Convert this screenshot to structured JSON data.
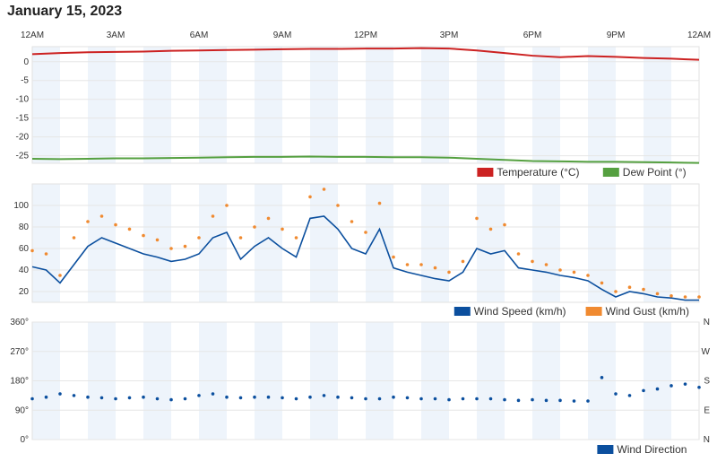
{
  "page": {
    "title": "January 15, 2023"
  },
  "time_axis": {
    "labels": [
      "12AM",
      "3AM",
      "6AM",
      "9AM",
      "12PM",
      "3PM",
      "6PM",
      "9PM",
      "12AM"
    ],
    "range_hours": [
      0,
      24
    ]
  },
  "chart_data": [
    {
      "type": "line",
      "ylim": [
        -27,
        4
      ],
      "yticks": [
        0,
        -5,
        -10,
        -15,
        -20,
        -25
      ],
      "legend_position": "bottom-right",
      "series": [
        {
          "name": "Temperature (°C)",
          "color": "#cc2222",
          "x": [
            0,
            1,
            2,
            3,
            4,
            5,
            6,
            7,
            8,
            9,
            10,
            11,
            12,
            13,
            14,
            15,
            16,
            17,
            18,
            19,
            20,
            21,
            22,
            23,
            24
          ],
          "values": [
            2.0,
            2.3,
            2.5,
            2.6,
            2.7,
            2.9,
            3.0,
            3.1,
            3.2,
            3.3,
            3.4,
            3.4,
            3.5,
            3.5,
            3.6,
            3.5,
            3.0,
            2.3,
            1.6,
            1.2,
            1.5,
            1.3,
            1.0,
            0.8,
            0.5
          ]
        },
        {
          "name": "Dew Point (°)",
          "color": "#55a040",
          "x": [
            0,
            1,
            2,
            3,
            4,
            5,
            6,
            7,
            8,
            9,
            10,
            11,
            12,
            13,
            14,
            15,
            16,
            17,
            18,
            19,
            20,
            21,
            22,
            23,
            24
          ],
          "values": [
            -25.8,
            -25.9,
            -25.8,
            -25.7,
            -25.7,
            -25.6,
            -25.5,
            -25.4,
            -25.3,
            -25.3,
            -25.2,
            -25.3,
            -25.3,
            -25.4,
            -25.4,
            -25.5,
            -25.8,
            -26.1,
            -26.4,
            -26.5,
            -26.6,
            -26.6,
            -26.7,
            -26.8,
            -26.9
          ]
        }
      ]
    },
    {
      "type": "line",
      "ylim": [
        10,
        120
      ],
      "yticks": [
        20,
        40,
        60,
        80,
        100
      ],
      "legend_position": "bottom-right",
      "series": [
        {
          "name": "Wind Speed (km/h)",
          "color": "#0b4f9e",
          "x": [
            0,
            0.5,
            1,
            1.5,
            2,
            2.5,
            3,
            3.5,
            4,
            4.5,
            5,
            5.5,
            6,
            6.5,
            7,
            7.5,
            8,
            8.5,
            9,
            9.5,
            10,
            10.5,
            11,
            11.5,
            12,
            12.5,
            13,
            13.5,
            14,
            14.5,
            15,
            15.5,
            16,
            16.5,
            17,
            17.5,
            18,
            18.5,
            19,
            19.5,
            20,
            20.5,
            21,
            21.5,
            22,
            22.5,
            23,
            23.5,
            24
          ],
          "values": [
            43,
            40,
            28,
            45,
            62,
            70,
            65,
            60,
            55,
            52,
            48,
            50,
            55,
            70,
            75,
            50,
            62,
            70,
            60,
            52,
            88,
            90,
            78,
            60,
            55,
            78,
            42,
            38,
            35,
            32,
            30,
            38,
            60,
            55,
            58,
            42,
            40,
            38,
            35,
            33,
            30,
            22,
            15,
            20,
            18,
            15,
            14,
            12,
            12
          ]
        },
        {
          "name": "Wind Gust (km/h)",
          "color": "#f08a30",
          "x": [
            0,
            0.5,
            1,
            1.5,
            2,
            2.5,
            3,
            3.5,
            4,
            4.5,
            5,
            5.5,
            6,
            6.5,
            7,
            7.5,
            8,
            8.5,
            9,
            9.5,
            10,
            10.5,
            11,
            11.5,
            12,
            12.5,
            13,
            13.5,
            14,
            14.5,
            15,
            15.5,
            16,
            16.5,
            17,
            17.5,
            18,
            18.5,
            19,
            19.5,
            20,
            20.5,
            21,
            21.5,
            22,
            22.5,
            23,
            23.5,
            24
          ],
          "values": [
            58,
            55,
            35,
            70,
            85,
            90,
            82,
            78,
            72,
            68,
            60,
            62,
            70,
            90,
            100,
            70,
            80,
            88,
            78,
            70,
            108,
            115,
            100,
            85,
            75,
            102,
            52,
            45,
            45,
            42,
            38,
            48,
            88,
            78,
            82,
            55,
            48,
            45,
            40,
            38,
            35,
            28,
            20,
            24,
            22,
            18,
            16,
            15,
            15
          ]
        }
      ]
    },
    {
      "type": "scatter",
      "ylim": [
        0,
        360
      ],
      "yticks": [
        "0°",
        "90°",
        "180°",
        "270°",
        "360°"
      ],
      "ytick_values": [
        0,
        90,
        180,
        270,
        360
      ],
      "yticks_right": [
        "N",
        "E",
        "S",
        "W",
        "N"
      ],
      "legend_position": "bottom-right",
      "series": [
        {
          "name": "Wind Direction",
          "color": "#0b4f9e",
          "x": [
            0,
            0.5,
            1,
            1.5,
            2,
            2.5,
            3,
            3.5,
            4,
            4.5,
            5,
            5.5,
            6,
            6.5,
            7,
            7.5,
            8,
            8.5,
            9,
            9.5,
            10,
            10.5,
            11,
            11.5,
            12,
            12.5,
            13,
            13.5,
            14,
            14.5,
            15,
            15.5,
            16,
            16.5,
            17,
            17.5,
            18,
            18.5,
            19,
            19.5,
            20,
            20.5,
            21,
            21.5,
            22,
            22.5,
            23,
            23.5,
            24
          ],
          "values": [
            125,
            130,
            140,
            135,
            130,
            128,
            125,
            128,
            130,
            125,
            122,
            125,
            135,
            140,
            130,
            128,
            130,
            130,
            128,
            125,
            130,
            135,
            130,
            128,
            125,
            125,
            130,
            128,
            125,
            125,
            122,
            125,
            125,
            125,
            122,
            120,
            122,
            120,
            120,
            118,
            118,
            190,
            140,
            135,
            150,
            155,
            165,
            170,
            160
          ]
        }
      ]
    }
  ]
}
